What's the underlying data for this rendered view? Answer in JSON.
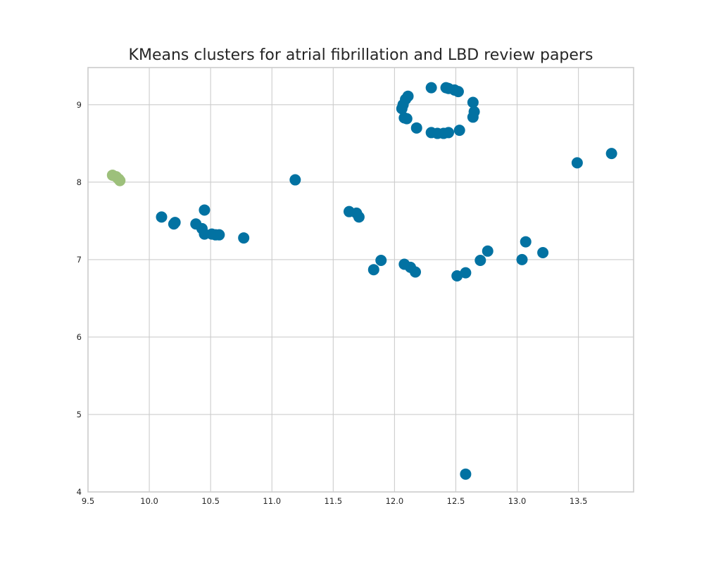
{
  "chart_data": {
    "type": "scatter",
    "title": "KMeans clusters for atrial fibrillation and LBD review papers",
    "xlabel": "",
    "ylabel": "",
    "xlim": [
      9.5,
      13.95
    ],
    "ylim": [
      4.0,
      9.48
    ],
    "xticks": [
      9.5,
      10.0,
      10.5,
      11.0,
      11.5,
      12.0,
      12.5,
      13.0,
      13.5
    ],
    "xtick_labels": [
      "9.5",
      "10.0",
      "10.5",
      "11.0",
      "11.5",
      "12.0",
      "12.5",
      "13.0",
      "13.5"
    ],
    "yticks": [
      4,
      5,
      6,
      7,
      8,
      9
    ],
    "ytick_labels": [
      "4",
      "5",
      "6",
      "7",
      "8",
      "9"
    ],
    "grid": true,
    "series": [
      {
        "color": "#0272a2",
        "points": [
          [
            12.3,
            9.22
          ],
          [
            12.42,
            9.22
          ],
          [
            12.44,
            9.21
          ],
          [
            12.49,
            9.19
          ],
          [
            12.52,
            9.17
          ],
          [
            12.11,
            9.11
          ],
          [
            12.09,
            9.07
          ],
          [
            12.07,
            9.0
          ],
          [
            12.06,
            8.95
          ],
          [
            12.64,
            9.03
          ],
          [
            12.65,
            8.91
          ],
          [
            12.64,
            8.84
          ],
          [
            12.08,
            8.83
          ],
          [
            12.1,
            8.82
          ],
          [
            12.18,
            8.7
          ],
          [
            12.3,
            8.64
          ],
          [
            12.35,
            8.63
          ],
          [
            12.4,
            8.63
          ],
          [
            12.44,
            8.64
          ],
          [
            12.53,
            8.67
          ],
          [
            11.19,
            8.03
          ],
          [
            10.45,
            7.64
          ],
          [
            10.1,
            7.55
          ],
          [
            10.21,
            7.48
          ],
          [
            10.2,
            7.46
          ],
          [
            10.38,
            7.46
          ],
          [
            10.43,
            7.4
          ],
          [
            10.45,
            7.33
          ],
          [
            10.51,
            7.33
          ],
          [
            10.54,
            7.32
          ],
          [
            10.57,
            7.32
          ],
          [
            10.77,
            7.28
          ],
          [
            11.63,
            7.62
          ],
          [
            11.69,
            7.6
          ],
          [
            11.71,
            7.55
          ],
          [
            11.89,
            6.99
          ],
          [
            11.83,
            6.87
          ],
          [
            12.08,
            6.94
          ],
          [
            12.13,
            6.9
          ],
          [
            12.17,
            6.84
          ],
          [
            12.51,
            6.79
          ],
          [
            12.58,
            6.83
          ],
          [
            12.7,
            6.99
          ],
          [
            12.76,
            7.11
          ],
          [
            13.04,
            7.0
          ],
          [
            13.07,
            7.23
          ],
          [
            13.21,
            7.09
          ],
          [
            13.49,
            8.25
          ],
          [
            13.77,
            8.37
          ],
          [
            12.58,
            4.23
          ]
        ]
      },
      {
        "color": "#9dc07b",
        "points": [
          [
            9.7,
            8.09
          ],
          [
            9.73,
            8.07
          ],
          [
            9.75,
            8.04
          ],
          [
            9.76,
            8.02
          ]
        ]
      }
    ]
  }
}
